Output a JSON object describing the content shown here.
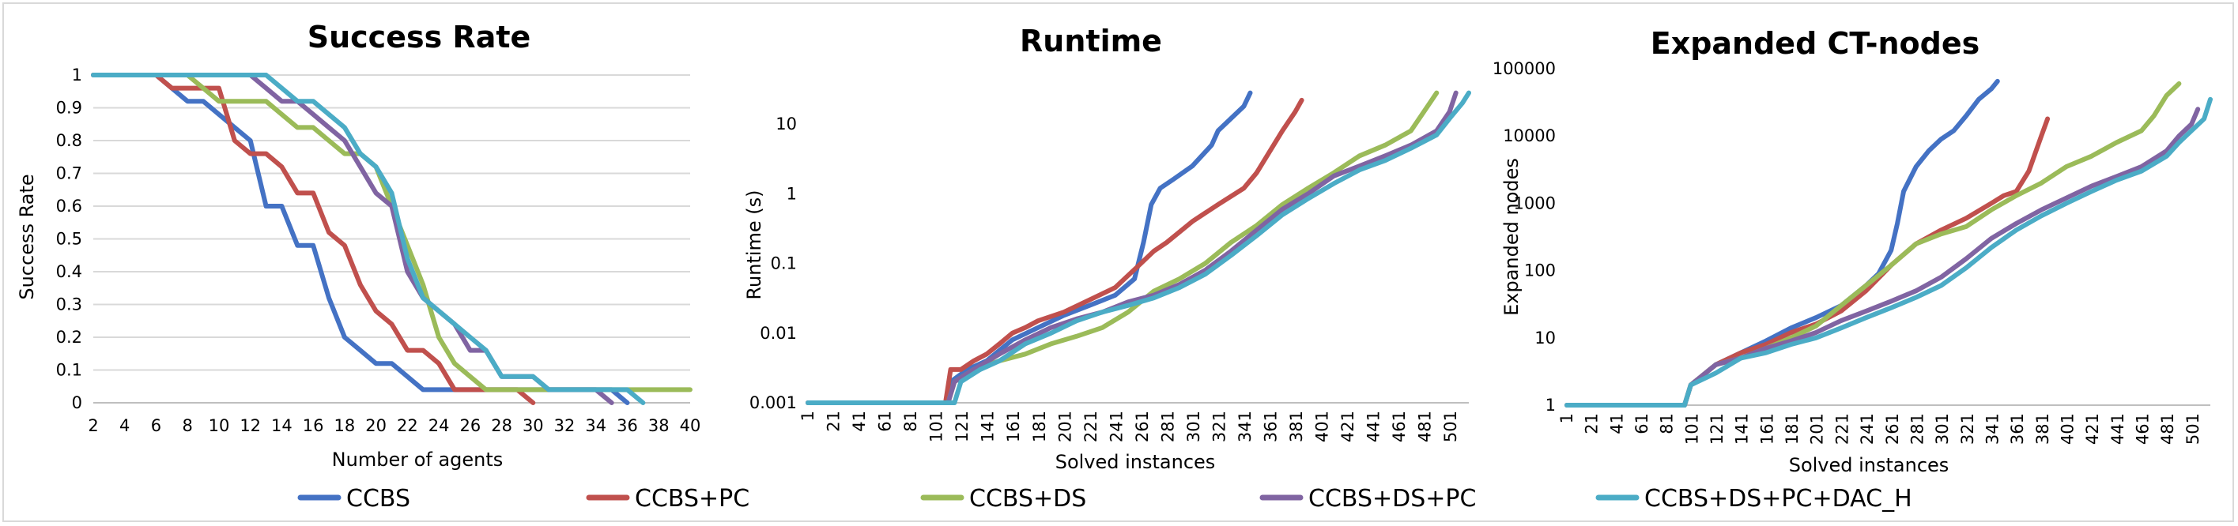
{
  "colors": {
    "CCBS": "#4472c4",
    "CCBS+PC": "#c0504d",
    "CCBS+DS": "#9bbb59",
    "CCBS+DS+PC": "#8064a2",
    "CCBS+DS+PC+DAC_H": "#4bacc6"
  },
  "legend": [
    "CCBS",
    "CCBS+PC",
    "CCBS+DS",
    "CCBS+DS+PC",
    "CCBS+DS+PC+DAC_H"
  ],
  "chart_data": [
    {
      "type": "line",
      "title": "Success Rate",
      "xlabel": "Number of agents",
      "ylabel": "Success Rate",
      "xlim": [
        2,
        40
      ],
      "ylim": [
        0,
        1
      ],
      "x_ticks": [
        "2",
        "4",
        "6",
        "8",
        "10",
        "12",
        "14",
        "16",
        "18",
        "20",
        "22",
        "24",
        "26",
        "28",
        "30",
        "32",
        "34",
        "36",
        "38",
        "40"
      ],
      "y_ticks": [
        "0",
        "0.1",
        "0.2",
        "0.3",
        "0.4",
        "0.5",
        "0.6",
        "0.7",
        "0.8",
        "0.9",
        "1"
      ],
      "grid": true,
      "series": [
        {
          "name": "CCBS",
          "x": [
            2,
            6,
            7,
            8,
            9,
            10,
            11,
            12,
            13,
            14,
            15,
            16,
            17,
            18,
            19,
            20,
            21,
            22,
            23,
            24,
            25,
            26,
            27,
            28,
            29,
            30,
            31,
            32,
            33,
            34,
            35,
            36
          ],
          "y": [
            1,
            1,
            0.96,
            0.92,
            0.92,
            0.88,
            0.84,
            0.8,
            0.6,
            0.6,
            0.48,
            0.48,
            0.32,
            0.2,
            0.16,
            0.12,
            0.12,
            0.08,
            0.04,
            0.04,
            0.04,
            0.04,
            0.04,
            0.04,
            0.04,
            0.04,
            0.04,
            0.04,
            0.04,
            0.04,
            0.04,
            0
          ]
        },
        {
          "name": "CCBS+PC",
          "x": [
            2,
            6,
            7,
            8,
            9,
            10,
            11,
            12,
            13,
            14,
            15,
            16,
            17,
            18,
            19,
            20,
            21,
            22,
            23,
            24,
            25,
            26,
            27,
            28,
            29,
            30
          ],
          "y": [
            1,
            1,
            0.96,
            0.96,
            0.96,
            0.96,
            0.8,
            0.76,
            0.76,
            0.72,
            0.64,
            0.64,
            0.52,
            0.48,
            0.36,
            0.28,
            0.24,
            0.16,
            0.16,
            0.12,
            0.04,
            0.04,
            0.04,
            0.04,
            0.04,
            0
          ]
        },
        {
          "name": "CCBS+DS",
          "x": [
            2,
            8,
            9,
            10,
            11,
            12,
            13,
            14,
            15,
            16,
            17,
            18,
            19,
            20,
            21,
            22,
            23,
            24,
            25,
            26,
            27,
            28,
            29,
            30,
            32,
            34,
            36,
            38,
            40
          ],
          "y": [
            1,
            1,
            0.96,
            0.92,
            0.92,
            0.92,
            0.92,
            0.88,
            0.84,
            0.84,
            0.8,
            0.76,
            0.76,
            0.72,
            0.6,
            0.48,
            0.36,
            0.2,
            0.12,
            0.08,
            0.04,
            0.04,
            0.04,
            0.04,
            0.04,
            0.04,
            0.04,
            0.04,
            0.04
          ]
        },
        {
          "name": "CCBS+DS+PC",
          "x": [
            2,
            12,
            13,
            14,
            15,
            16,
            17,
            18,
            19,
            20,
            21,
            22,
            23,
            24,
            25,
            26,
            27,
            28,
            29,
            30,
            31,
            32,
            33,
            34,
            35
          ],
          "y": [
            1,
            1,
            0.96,
            0.92,
            0.92,
            0.88,
            0.84,
            0.8,
            0.72,
            0.64,
            0.6,
            0.4,
            0.32,
            0.28,
            0.24,
            0.16,
            0.16,
            0.08,
            0.08,
            0.08,
            0.04,
            0.04,
            0.04,
            0.04,
            0
          ]
        },
        {
          "name": "CCBS+DS+PC+DAC_H",
          "x": [
            2,
            13,
            14,
            15,
            16,
            17,
            18,
            19,
            20,
            21,
            22,
            23,
            24,
            25,
            26,
            27,
            28,
            29,
            30,
            31,
            32,
            33,
            34,
            35,
            36,
            37
          ],
          "y": [
            1,
            1,
            0.96,
            0.92,
            0.92,
            0.88,
            0.84,
            0.76,
            0.72,
            0.64,
            0.44,
            0.32,
            0.28,
            0.24,
            0.2,
            0.16,
            0.08,
            0.08,
            0.08,
            0.04,
            0.04,
            0.04,
            0.04,
            0.04,
            0.04,
            0
          ]
        }
      ]
    },
    {
      "type": "line",
      "title": "Runtime",
      "xlabel": "Solved instances",
      "ylabel": "Runtime (s)",
      "xlim": [
        1,
        515
      ],
      "ylim": [
        0.001,
        30
      ],
      "log_y": true,
      "x_ticks": [
        "1",
        "21",
        "41",
        "61",
        "81",
        "101",
        "121",
        "141",
        "161",
        "181",
        "201",
        "221",
        "241",
        "261",
        "281",
        "301",
        "321",
        "341",
        "361",
        "381",
        "401",
        "421",
        "441",
        "461",
        "481",
        "501"
      ],
      "y_ticks": [
        "0.001",
        "0.01",
        "0.1",
        "1",
        "10"
      ],
      "grid": false,
      "series": [
        {
          "name": "CCBS",
          "x": [
            1,
            108,
            112,
            125,
            140,
            160,
            180,
            200,
            220,
            240,
            255,
            262,
            268,
            275,
            285,
            300,
            315,
            320,
            330,
            340,
            345
          ],
          "y": [
            0.001,
            0.001,
            0.002,
            0.003,
            0.004,
            0.008,
            0.012,
            0.018,
            0.025,
            0.035,
            0.06,
            0.2,
            0.7,
            1.2,
            1.6,
            2.5,
            5,
            8,
            12,
            18,
            28
          ]
        },
        {
          "name": "CCBS+PC",
          "x": [
            1,
            108,
            112,
            120,
            130,
            140,
            150,
            160,
            170,
            180,
            200,
            220,
            240,
            260,
            270,
            280,
            300,
            320,
            340,
            350,
            360,
            370,
            380,
            385
          ],
          "y": [
            0.001,
            0.001,
            0.003,
            0.003,
            0.004,
            0.005,
            0.007,
            0.01,
            0.012,
            0.015,
            0.02,
            0.03,
            0.045,
            0.1,
            0.15,
            0.2,
            0.4,
            0.7,
            1.2,
            2,
            4,
            8,
            15,
            22
          ]
        },
        {
          "name": "CCBS+DS",
          "x": [
            1,
            110,
            115,
            130,
            150,
            170,
            190,
            210,
            230,
            250,
            270,
            290,
            310,
            330,
            350,
            370,
            390,
            410,
            430,
            450,
            470,
            480,
            490
          ],
          "y": [
            0.001,
            0.001,
            0.002,
            0.003,
            0.004,
            0.005,
            0.007,
            0.009,
            0.012,
            0.02,
            0.04,
            0.06,
            0.1,
            0.2,
            0.35,
            0.7,
            1.2,
            2,
            3.5,
            5,
            8,
            15,
            28
          ]
        },
        {
          "name": "CCBS+DS+PC",
          "x": [
            1,
            110,
            115,
            130,
            150,
            170,
            190,
            210,
            230,
            250,
            270,
            290,
            310,
            330,
            350,
            370,
            390,
            410,
            430,
            450,
            470,
            490,
            500,
            505
          ],
          "y": [
            0.001,
            0.001,
            0.002,
            0.003,
            0.005,
            0.008,
            0.012,
            0.016,
            0.02,
            0.028,
            0.035,
            0.05,
            0.08,
            0.15,
            0.3,
            0.6,
            1.0,
            1.8,
            2.5,
            3.5,
            5,
            8,
            15,
            28
          ]
        },
        {
          "name": "CCBS+DS+PC+DAC_H",
          "x": [
            1,
            115,
            120,
            135,
            150,
            170,
            190,
            210,
            230,
            250,
            270,
            290,
            310,
            330,
            350,
            370,
            390,
            410,
            430,
            450,
            470,
            490,
            500,
            510,
            515
          ],
          "y": [
            0.001,
            0.001,
            0.002,
            0.003,
            0.004,
            0.007,
            0.01,
            0.015,
            0.02,
            0.025,
            0.032,
            0.045,
            0.07,
            0.13,
            0.25,
            0.5,
            0.85,
            1.4,
            2.2,
            3,
            4.5,
            7,
            12,
            20,
            28
          ]
        }
      ]
    },
    {
      "type": "line",
      "title": "Expanded CT-nodes",
      "xlabel": "Solved instances",
      "ylabel": "Expanded nodes",
      "xlim": [
        1,
        515
      ],
      "ylim": [
        1,
        100000
      ],
      "log_y": true,
      "x_ticks": [
        "1",
        "21",
        "41",
        "61",
        "81",
        "101",
        "121",
        "141",
        "161",
        "181",
        "201",
        "221",
        "241",
        "261",
        "281",
        "301",
        "321",
        "341",
        "361",
        "381",
        "401",
        "421",
        "441",
        "461",
        "481",
        "501"
      ],
      "y_ticks": [
        "1",
        "10",
        "100",
        "1000",
        "10000",
        "100000"
      ],
      "grid": false,
      "series": [
        {
          "name": "CCBS",
          "x": [
            1,
            95,
            100,
            120,
            140,
            160,
            180,
            200,
            220,
            240,
            250,
            260,
            265,
            270,
            280,
            290,
            300,
            310,
            320,
            330,
            340,
            345
          ],
          "y": [
            1,
            1,
            2,
            4,
            6,
            9,
            14,
            20,
            30,
            60,
            90,
            200,
            500,
            1500,
            3500,
            6000,
            9000,
            12000,
            20000,
            35000,
            50000,
            65000
          ]
        },
        {
          "name": "CCBS+PC",
          "x": [
            1,
            95,
            100,
            120,
            140,
            160,
            180,
            200,
            220,
            240,
            260,
            280,
            300,
            320,
            340,
            350,
            360,
            370,
            380,
            385
          ],
          "y": [
            1,
            1,
            2,
            4,
            6,
            8,
            12,
            16,
            25,
            50,
            120,
            250,
            400,
            600,
            1000,
            1300,
            1500,
            3000,
            10000,
            18000
          ]
        },
        {
          "name": "CCBS+DS",
          "x": [
            1,
            95,
            100,
            120,
            140,
            160,
            180,
            200,
            220,
            240,
            260,
            280,
            300,
            320,
            340,
            360,
            380,
            400,
            420,
            440,
            460,
            470,
            480,
            490
          ],
          "y": [
            1,
            1,
            2,
            4,
            5,
            7,
            10,
            15,
            30,
            60,
            120,
            250,
            350,
            450,
            800,
            1300,
            2000,
            3500,
            5000,
            8000,
            12000,
            20000,
            40000,
            60000
          ]
        },
        {
          "name": "CCBS+DS+PC",
          "x": [
            1,
            95,
            100,
            120,
            140,
            160,
            180,
            200,
            220,
            240,
            260,
            280,
            300,
            320,
            340,
            360,
            380,
            400,
            420,
            440,
            460,
            480,
            490,
            500,
            505
          ],
          "y": [
            1,
            1,
            2,
            4,
            5,
            7,
            9,
            12,
            18,
            25,
            35,
            50,
            80,
            150,
            300,
            500,
            800,
            1200,
            1800,
            2500,
            3500,
            6000,
            10000,
            15000,
            25000
          ]
        },
        {
          "name": "CCBS+DS+PC+DAC_H",
          "x": [
            1,
            95,
            100,
            120,
            140,
            160,
            180,
            200,
            220,
            240,
            260,
            280,
            300,
            320,
            340,
            360,
            380,
            400,
            420,
            440,
            460,
            480,
            490,
            500,
            510,
            515
          ],
          "y": [
            1,
            1,
            2,
            3,
            5,
            6,
            8,
            10,
            14,
            20,
            28,
            40,
            60,
            110,
            220,
            400,
            650,
            1000,
            1500,
            2200,
            3000,
            5000,
            8000,
            12000,
            18000,
            35000
          ]
        }
      ]
    }
  ]
}
